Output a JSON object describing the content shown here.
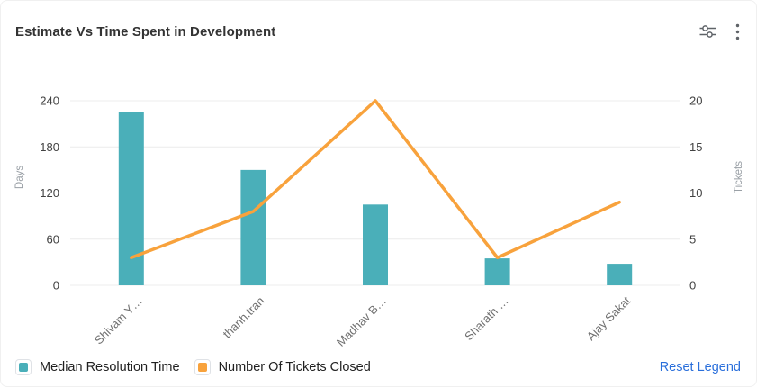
{
  "header": {
    "title": "Estimate Vs Time Spent in Development",
    "settings_icon": "sliders-icon",
    "menu_icon": "kebab-menu-icon"
  },
  "legend": {
    "items": [
      {
        "label": "Median Resolution Time",
        "color": "#4aafb9"
      },
      {
        "label": "Number Of Tickets Closed",
        "color": "#f8a23c"
      }
    ],
    "reset_label": "Reset Legend",
    "reset_color": "#2a6fdb"
  },
  "chart_data": {
    "type": "combo-bar-line",
    "title": "Estimate Vs Time Spent in Development",
    "categories": [
      "Shivam Y…",
      "thanh.tran",
      "Madhav B…",
      "Sharath …",
      "Ajay Sakat"
    ],
    "series": [
      {
        "name": "Median Resolution Time",
        "type": "bar",
        "axis": "left",
        "color": "#4aafb9",
        "values": [
          225,
          150,
          105,
          35,
          28
        ]
      },
      {
        "name": "Number Of Tickets Closed",
        "type": "line",
        "axis": "right",
        "color": "#f8a23c",
        "values": [
          3,
          8,
          20,
          3,
          9
        ]
      }
    ],
    "left_axis": {
      "label": "Days",
      "ticks": [
        0,
        60,
        120,
        180,
        240
      ],
      "range": [
        0,
        240
      ]
    },
    "right_axis": {
      "label": "Tickets",
      "ticks": [
        0,
        5,
        10,
        15,
        20
      ],
      "range": [
        0,
        20
      ]
    },
    "grid": true,
    "legend_position": "bottom"
  },
  "style": {
    "grid_color": "#ececec",
    "tick_color": "#424242",
    "category_color": "#6f6f6f",
    "axis_title_color": "#9aa0a6",
    "icon_color": "#5f6368"
  }
}
